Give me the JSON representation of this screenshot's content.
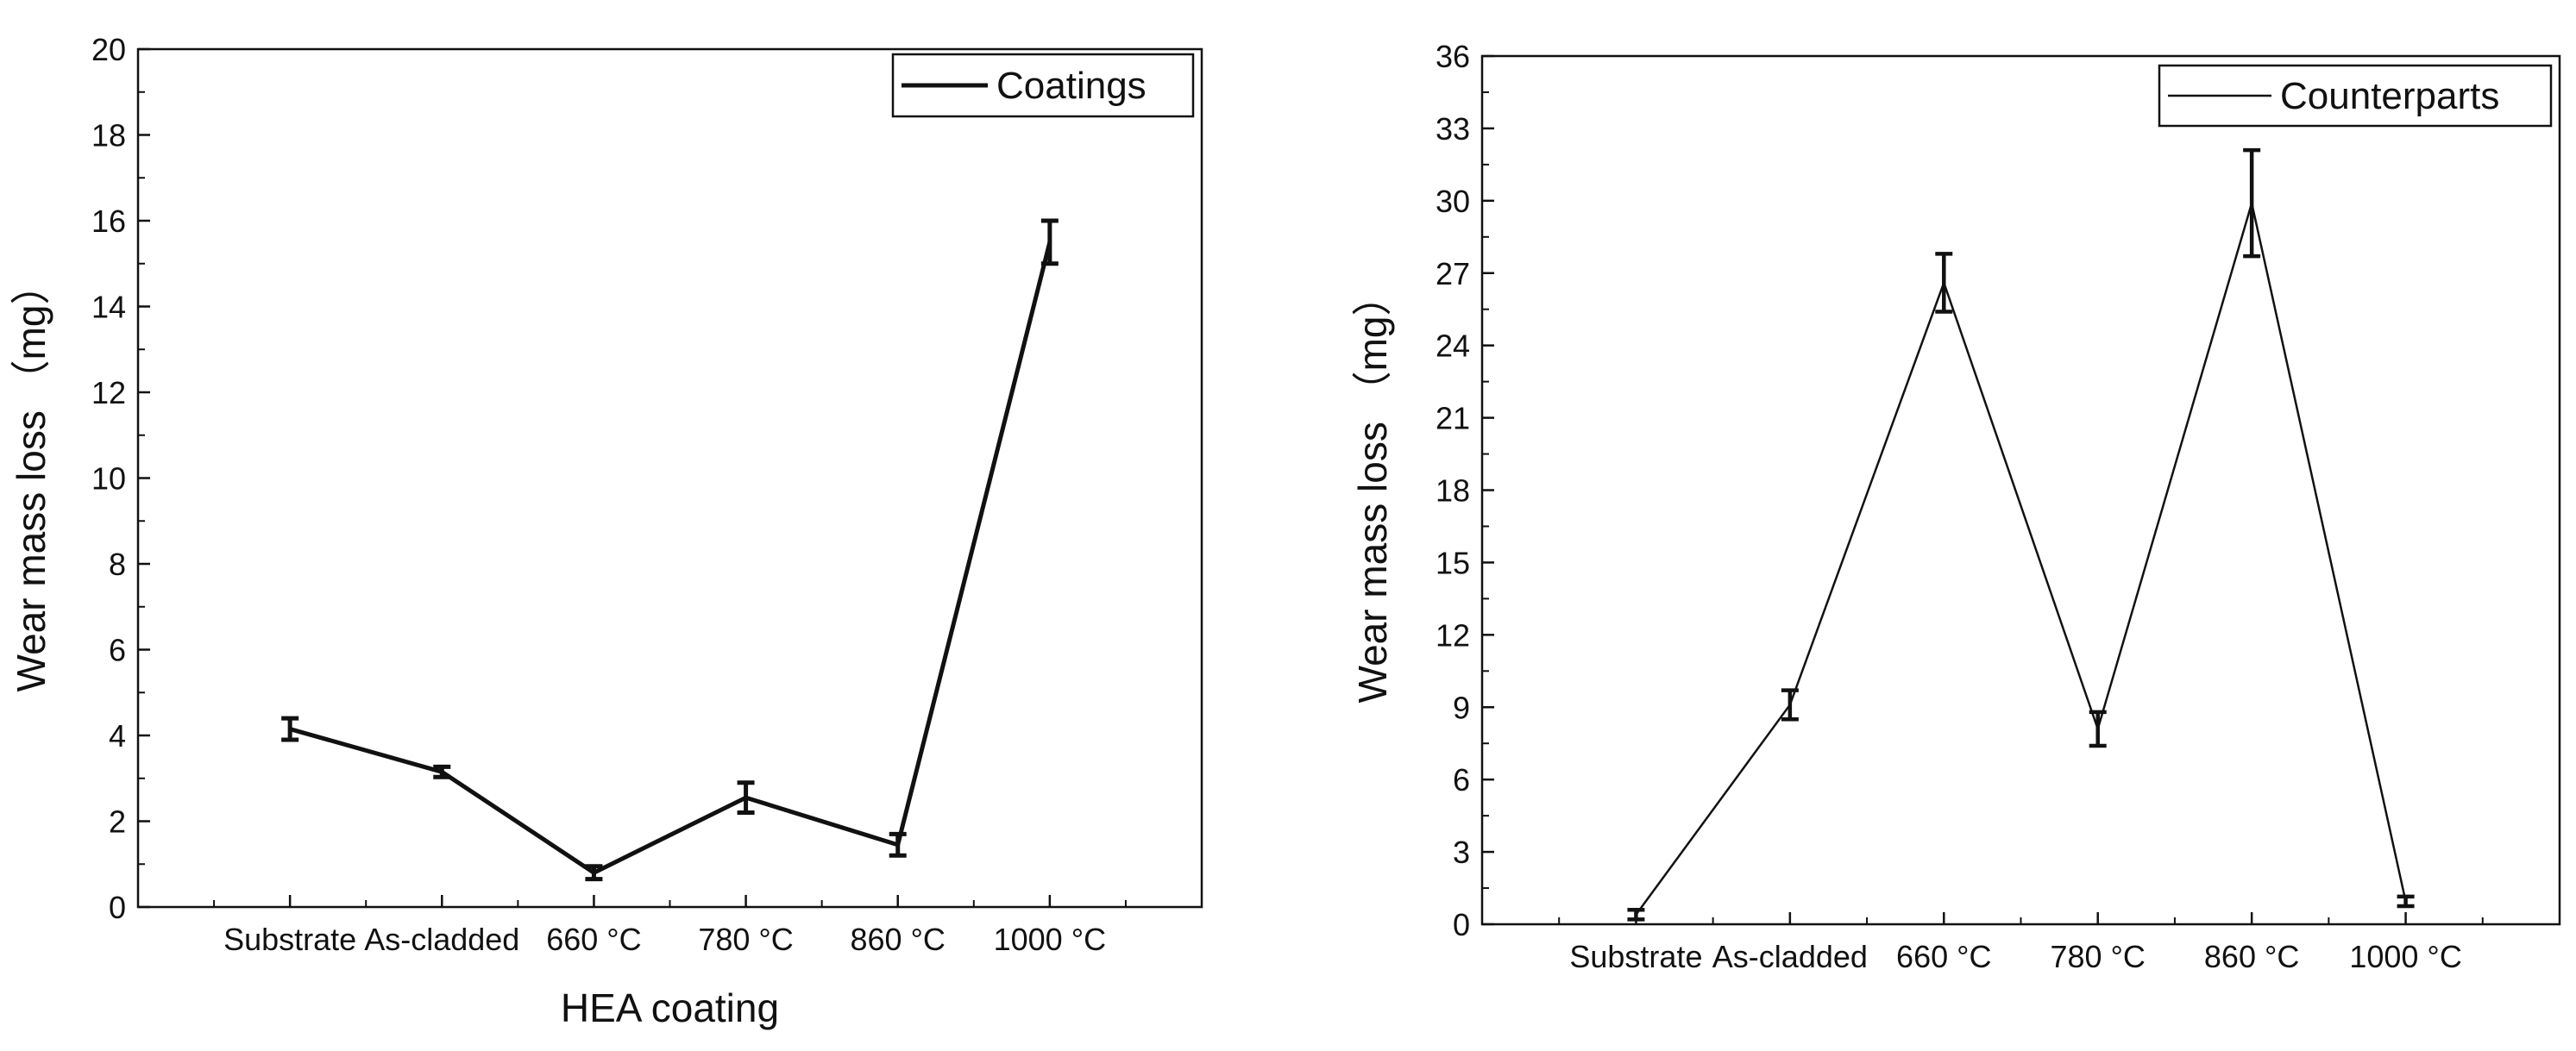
{
  "chart_data": [
    {
      "type": "line",
      "title": "",
      "xlabel": "HEA coating",
      "ylabel": "Wear mass loss （mg）",
      "categories": [
        "Substrate",
        "As-cladded",
        "660 °C",
        "780 °C",
        "860 °C",
        "1000 °C"
      ],
      "series": [
        {
          "name": "Coatings",
          "values": [
            4.15,
            3.15,
            0.8,
            2.55,
            1.45,
            15.5
          ],
          "errors": [
            0.25,
            0.12,
            0.15,
            0.35,
            0.25,
            0.5
          ]
        }
      ],
      "ylim": [
        0,
        20
      ],
      "yticks": [
        "0",
        "2",
        "4",
        "6",
        "8",
        "10",
        "12",
        "14",
        "16",
        "18",
        "20"
      ],
      "legend_position": "top-right",
      "grid": false
    },
    {
      "type": "line",
      "title": "",
      "xlabel": "",
      "ylabel": "Wear mass loss （mg）",
      "categories": [
        "Substrate",
        "As-cladded",
        "660 °C",
        "780 °C",
        "860 °C",
        "1000 °C"
      ],
      "series": [
        {
          "name": "Counterparts",
          "values": [
            0.4,
            9.1,
            26.6,
            8.1,
            29.9,
            0.95
          ],
          "errors": [
            0.2,
            0.6,
            1.2,
            0.7,
            2.2,
            0.2
          ]
        }
      ],
      "ylim": [
        0,
        36
      ],
      "yticks": [
        "0",
        "3",
        "6",
        "9",
        "12",
        "15",
        "18",
        "21",
        "24",
        "27",
        "30",
        "33",
        "36"
      ],
      "legend_position": "top-right",
      "grid": false
    }
  ]
}
